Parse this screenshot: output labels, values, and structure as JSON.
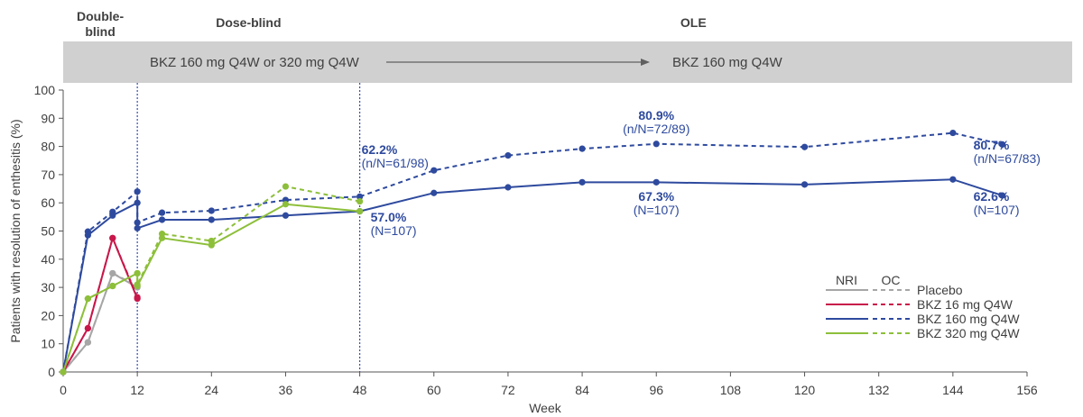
{
  "chart_data": {
    "type": "line",
    "xlabel": "Week",
    "ylabel": "Patients with resolution of enthesitis (%)",
    "xlim": [
      0,
      156
    ],
    "ylim": [
      0,
      100
    ],
    "xticks": [
      0,
      12,
      24,
      36,
      48,
      60,
      72,
      84,
      96,
      108,
      120,
      132,
      144,
      156
    ],
    "yticks": [
      0,
      10,
      20,
      30,
      40,
      50,
      60,
      70,
      80,
      90,
      100
    ],
    "grid": false,
    "legend_placement": "bottom-right",
    "legend_headers": {
      "nri": "NRI",
      "oc": "OC"
    },
    "phases": [
      {
        "label": "Double-\nblind",
        "x_start": 0,
        "x_end": 12
      },
      {
        "label": "Dose-blind",
        "x_start": 12,
        "x_end": 48
      },
      {
        "label": "OLE",
        "x_start": 48,
        "x_end": 156
      }
    ],
    "vlines": [
      12,
      48
    ],
    "banner": {
      "left_text": "BKZ 160 mg Q4W or 320 mg Q4W",
      "right_text": "BKZ 160 mg Q4W"
    },
    "series": [
      {
        "name": "Placebo",
        "method": "NRI",
        "color": "#a6a6a6",
        "dashed": false,
        "x": [
          0,
          4,
          8,
          12
        ],
        "y": [
          0,
          10.5,
          35,
          30
        ]
      },
      {
        "name": "Placebo",
        "method": "OC",
        "color": "#a6a6a6",
        "dashed": true,
        "x": [
          0,
          4,
          8,
          12
        ],
        "y": [
          0,
          10.5,
          35,
          30.5
        ]
      },
      {
        "name": "BKZ 16 mg Q4W",
        "method": "NRI",
        "color": "#c8174a",
        "dashed": false,
        "x": [
          0,
          4,
          8,
          12
        ],
        "y": [
          0,
          15.5,
          47.5,
          26
        ]
      },
      {
        "name": "BKZ 16 mg Q4W",
        "method": "OC",
        "color": "#c8174a",
        "dashed": true,
        "x": [
          0,
          4,
          8,
          12
        ],
        "y": [
          0,
          15.5,
          47.5,
          26.5
        ]
      },
      {
        "name": "BKZ 160 mg Q4W",
        "method": "NRI",
        "color": "#2e4a9e",
        "dashed": false,
        "x": [
          0,
          4,
          8,
          12,
          12,
          16,
          24,
          36,
          48,
          60,
          72,
          84,
          96,
          120,
          144,
          152
        ],
        "y": [
          0,
          48.5,
          55.5,
          60,
          51,
          54,
          54,
          55.5,
          57,
          63.5,
          65.5,
          67.3,
          67.3,
          66.5,
          68.3,
          62.6
        ]
      },
      {
        "name": "BKZ 160 mg Q4W",
        "method": "OC",
        "color": "#2e4a9e",
        "dashed": true,
        "x": [
          0,
          4,
          8,
          12,
          12,
          16,
          24,
          36,
          48,
          60,
          72,
          84,
          96,
          120,
          144,
          152
        ],
        "y": [
          0,
          49.8,
          56.8,
          64,
          53,
          56.5,
          57.2,
          61,
          62.2,
          71.5,
          76.8,
          79.2,
          80.9,
          79.8,
          84.8,
          80.7
        ]
      },
      {
        "name": "BKZ 320 mg Q4W",
        "method": "NRI",
        "color": "#8dbf3a",
        "dashed": false,
        "x": [
          0,
          4,
          8,
          12,
          12,
          16,
          24,
          36,
          48
        ],
        "y": [
          0,
          26,
          30.5,
          35,
          30.5,
          47.5,
          45,
          59.5,
          57
        ]
      },
      {
        "name": "BKZ 320 mg Q4W",
        "method": "OC",
        "color": "#8dbf3a",
        "dashed": true,
        "x": [
          0,
          4,
          8,
          12,
          12,
          16,
          24,
          36,
          48
        ],
        "y": [
          0,
          26,
          30.5,
          35,
          31,
          49,
          46.5,
          65.8,
          60.5
        ]
      }
    ],
    "annotations": [
      {
        "pct": "62.2%",
        "sub": "(n/N=61/98)",
        "x": 48,
        "y": 62.2
      },
      {
        "pct": "80.9%",
        "sub": "(n/N=72/89)",
        "x": 96,
        "y": 80.9
      },
      {
        "pct": "80.7%",
        "sub": "(n/N=67/83)",
        "x": 152,
        "y": 80.7
      },
      {
        "pct": "57.0%",
        "sub": "(N=107)",
        "x": 48,
        "y": 57
      },
      {
        "pct": "67.3%",
        "sub": "(N=107)",
        "x": 96,
        "y": 67.3
      },
      {
        "pct": "62.6%",
        "sub": "(N=107)",
        "x": 152,
        "y": 62.6
      }
    ],
    "legend": [
      "Placebo",
      "BKZ 16 mg Q4W",
      "BKZ 160 mg Q4W",
      "BKZ 320 mg Q4W"
    ]
  }
}
